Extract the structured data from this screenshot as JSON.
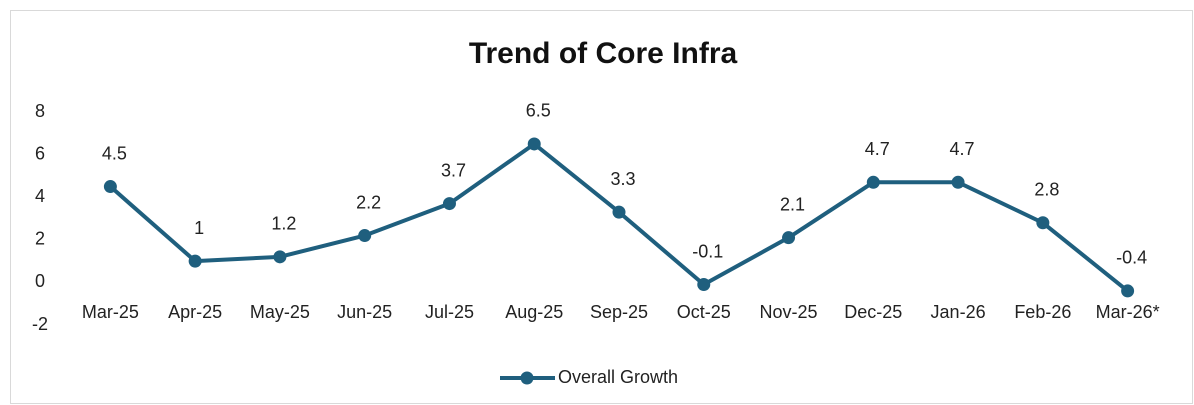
{
  "chart_data": {
    "type": "line",
    "title": "Trend of Core Infra",
    "categories": [
      "Mar-25",
      "Apr-25",
      "May-25",
      "Jun-25",
      "Jul-25",
      "Aug-25",
      "Sep-25",
      "Oct-25",
      "Nov-25",
      "Dec-25",
      "Jan-26",
      "Feb-26",
      "Mar-26*"
    ],
    "series": [
      {
        "name": "Overall Growth",
        "color": "#1f5f7e",
        "values": [
          4.5,
          1,
          1.2,
          2.2,
          3.7,
          6.5,
          3.3,
          -0.1,
          2.1,
          4.7,
          4.7,
          2.8,
          -0.4
        ]
      }
    ],
    "ylim": [
      -2,
      8
    ],
    "yticks": [
      -2,
      0,
      2,
      4,
      6,
      8
    ],
    "grid": false,
    "legend": "bottom"
  }
}
